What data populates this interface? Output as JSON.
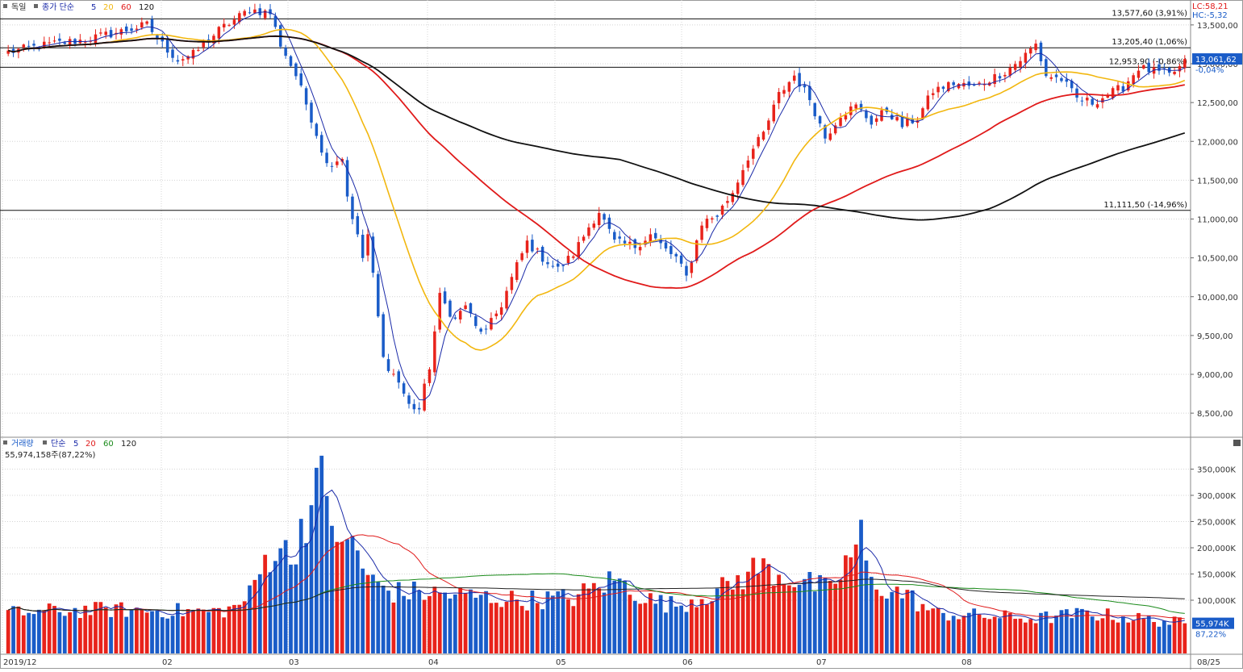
{
  "legend": {
    "price": {
      "name": "독일",
      "ma_label": "종가 단순",
      "periods": [
        "5",
        "20",
        "60",
        "120"
      ]
    },
    "volume": {
      "name": "거래량",
      "ma_label": "단순",
      "periods": [
        "5",
        "20",
        "60",
        "120"
      ],
      "current_text": "55,974,158주(87,22%)"
    }
  },
  "corner_labels": {
    "lc": "LC:58,21",
    "hc": "HC:-5,32"
  },
  "current": {
    "price_label": "13,061,62",
    "price_change": "-0,04%",
    "volume_label": "55,974K",
    "volume_pct": "87,22%"
  },
  "colors": {
    "up": "#e8231b",
    "down": "#1a5cc8",
    "ma5": "#1a2aa8",
    "ma20": "#f2b70f",
    "ma60": "#e01a1a",
    "ma120": "#111111",
    "vol_ma60": "#1a8a1a",
    "vol_ma120": "#222222"
  },
  "chart_data": [
    {
      "type": "candlestick",
      "title": "독일",
      "ylim": [
        8200,
        13800
      ],
      "y_ticks": [
        "8,500,00",
        "9,000,00",
        "9,500,00",
        "10,000,00",
        "10,500,00",
        "11,000,00",
        "11,500,00",
        "12,000,00",
        "12,500,00",
        "13,000,00",
        "13,500,00"
      ],
      "x_ticks": [
        "2019/12",
        "02",
        "03",
        "04",
        "05",
        "06",
        "07",
        "08",
        "08/25"
      ],
      "horizontal_lines": [
        {
          "value": 13577.6,
          "label": "13,577,60 (3,91%)"
        },
        {
          "value": 13205.4,
          "label": "13,205,40 (1,06%)"
        },
        {
          "value": 12953.9,
          "label": "12,953,90 (-0,86%)"
        },
        {
          "value": 11111.5,
          "label": "11,111,50 (-14,96%)"
        }
      ],
      "ohlc_segments": [
        [
          0,
          13150
        ],
        [
          8,
          13250
        ],
        [
          14,
          13300
        ],
        [
          21,
          13400
        ],
        [
          27,
          13500
        ],
        [
          30,
          13250
        ],
        [
          33,
          13050
        ],
        [
          36,
          13120
        ],
        [
          41,
          13430
        ],
        [
          47,
          13700
        ],
        [
          51,
          13650
        ],
        [
          53,
          13250
        ],
        [
          56,
          12850
        ],
        [
          59,
          12300
        ],
        [
          62,
          11700
        ],
        [
          65,
          11800
        ],
        [
          66,
          11300
        ],
        [
          69,
          10500
        ],
        [
          70,
          10800
        ],
        [
          73,
          9200
        ],
        [
          76,
          8900
        ],
        [
          78,
          8600
        ],
        [
          80,
          8550
        ],
        [
          82,
          9100
        ],
        [
          84,
          10000
        ],
        [
          87,
          9700
        ],
        [
          89,
          9900
        ],
        [
          91,
          9600
        ],
        [
          93,
          9550
        ],
        [
          96,
          9900
        ],
        [
          99,
          10400
        ],
        [
          101,
          10700
        ],
        [
          104,
          10500
        ],
        [
          107,
          10350
        ],
        [
          110,
          10550
        ],
        [
          113,
          10900
        ],
        [
          115,
          11100
        ],
        [
          118,
          10700
        ],
        [
          122,
          10650
        ],
        [
          125,
          10800
        ],
        [
          128,
          10600
        ],
        [
          130,
          10500
        ],
        [
          132,
          10250
        ],
        [
          135,
          10950
        ],
        [
          138,
          11050
        ],
        [
          141,
          11350
        ],
        [
          144,
          11800
        ],
        [
          147,
          12100
        ],
        [
          150,
          12600
        ],
        [
          153,
          12850
        ],
        [
          156,
          12550
        ],
        [
          159,
          12050
        ],
        [
          162,
          12350
        ],
        [
          165,
          12450
        ],
        [
          168,
          12250
        ],
        [
          171,
          12400
        ],
        [
          174,
          12200
        ],
        [
          177,
          12300
        ],
        [
          180,
          12650
        ],
        [
          184,
          12750
        ],
        [
          188,
          12700
        ],
        [
          191,
          12800
        ],
        [
          194,
          12900
        ],
        [
          197,
          13050
        ],
        [
          200,
          13250
        ],
        [
          202,
          12850
        ],
        [
          205,
          12800
        ],
        [
          208,
          12550
        ],
        [
          211,
          12500
        ],
        [
          214,
          12600
        ],
        [
          217,
          12700
        ],
        [
          220,
          12950
        ],
        [
          223,
          12900
        ],
        [
          226,
          12850
        ],
        [
          228,
          12950
        ],
        [
          229,
          13061.62
        ]
      ],
      "ma_periods": [
        5,
        20,
        60,
        120
      ]
    },
    {
      "type": "bar",
      "title": "거래량",
      "ylim": [
        0,
        400000
      ],
      "y_unit": "K",
      "y_ticks": [
        "100,000K",
        "150,000K",
        "200,000K",
        "250,000K",
        "300,000K",
        "350,000K"
      ],
      "volume_anchors": [
        [
          0,
          75000
        ],
        [
          10,
          80000
        ],
        [
          20,
          82000
        ],
        [
          30,
          80000
        ],
        [
          40,
          78000
        ],
        [
          44,
          85000
        ],
        [
          47,
          110000
        ],
        [
          50,
          175000
        ],
        [
          53,
          210000
        ],
        [
          55,
          170000
        ],
        [
          57,
          245000
        ],
        [
          59,
          275000
        ],
        [
          61,
          330000
        ],
        [
          63,
          270000
        ],
        [
          65,
          185000
        ],
        [
          67,
          220000
        ],
        [
          70,
          140000
        ],
        [
          75,
          115000
        ],
        [
          80,
          115000
        ],
        [
          90,
          108000
        ],
        [
          100,
          100000
        ],
        [
          110,
          105000
        ],
        [
          118,
          140000
        ],
        [
          125,
          100000
        ],
        [
          130,
          90000
        ],
        [
          140,
          125000
        ],
        [
          146,
          165000
        ],
        [
          150,
          150000
        ],
        [
          160,
          118000
        ],
        [
          166,
          220000
        ],
        [
          168,
          130000
        ],
        [
          175,
          110000
        ],
        [
          180,
          75000
        ],
        [
          190,
          70000
        ],
        [
          200,
          65000
        ],
        [
          210,
          75000
        ],
        [
          215,
          70000
        ],
        [
          225,
          60000
        ],
        [
          229,
          55974
        ]
      ],
      "ma_periods": [
        5,
        20,
        60,
        120
      ]
    }
  ]
}
